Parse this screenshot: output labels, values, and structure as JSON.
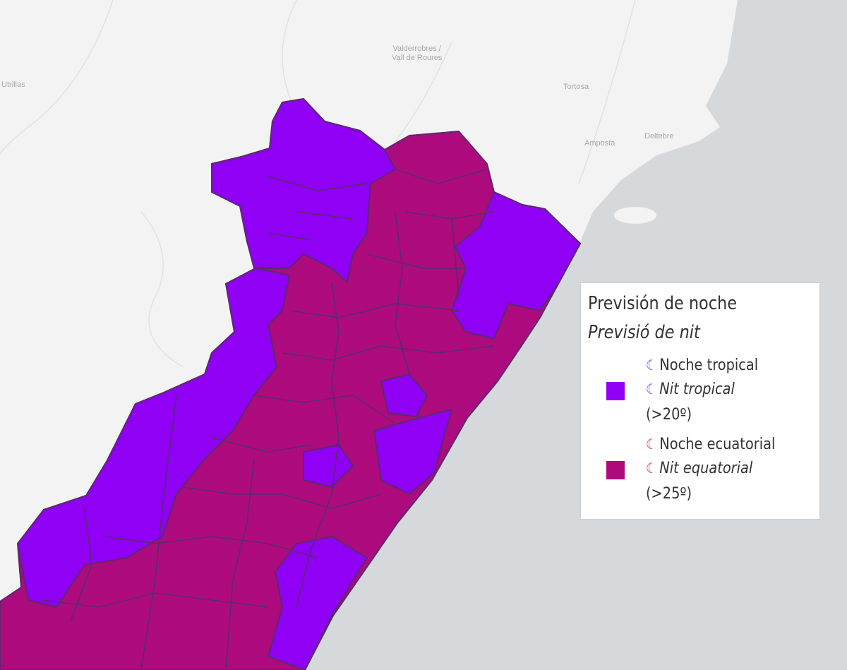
{
  "map": {
    "places": [
      {
        "name": "Utrillas"
      },
      {
        "name": "Valderrobres /\nVall de Roures"
      },
      {
        "name": "Tortosa"
      },
      {
        "name": "Amposta"
      },
      {
        "name": "Deltebre"
      }
    ],
    "colors": {
      "land": "#f3f3f3",
      "sea": "#d6d9dc",
      "tropical": "#8f00f5",
      "equatorial": "#ad0a7e",
      "border": "#5b2a6e"
    }
  },
  "legend": {
    "title": "Previsión de noche",
    "subtitle": "Previsió de nit",
    "items": [
      {
        "color": "#8f00f5",
        "icon": "crescent-moon-icon",
        "moon_color": "#7b3ff0",
        "label_es": "Noche tropical",
        "label_ca": "Nit tropical",
        "range": "(>20º)"
      },
      {
        "color": "#ad0a7e",
        "icon": "crescent-moon-icon",
        "moon_color": "#c0307a",
        "label_es": "Noche ecuatorial",
        "label_ca": "Nit equatorial",
        "range": "(>25º)"
      }
    ]
  }
}
